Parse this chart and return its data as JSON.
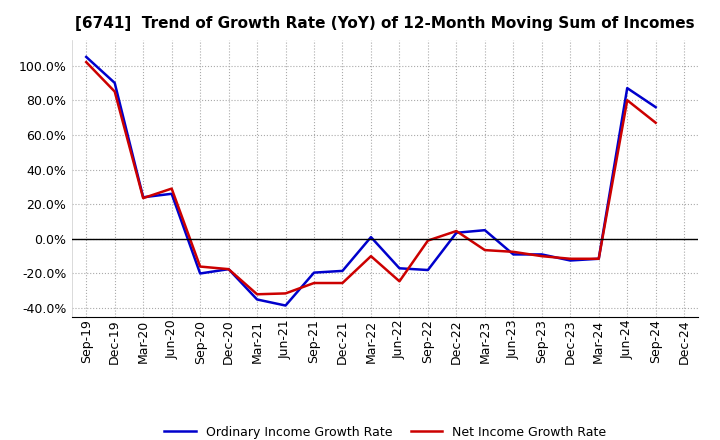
{
  "title": "[6741]  Trend of Growth Rate (YoY) of 12-Month Moving Sum of Incomes",
  "x_labels": [
    "Sep-19",
    "Dec-19",
    "Mar-20",
    "Jun-20",
    "Sep-20",
    "Dec-20",
    "Mar-21",
    "Jun-21",
    "Sep-21",
    "Dec-21",
    "Mar-22",
    "Jun-22",
    "Sep-22",
    "Dec-22",
    "Mar-23",
    "Jun-23",
    "Sep-23",
    "Dec-23",
    "Mar-24",
    "Jun-24",
    "Sep-24",
    "Dec-24"
  ],
  "ordinary_income": [
    1.05,
    0.9,
    0.24,
    0.26,
    -0.2,
    -0.175,
    -0.35,
    -0.385,
    -0.195,
    -0.185,
    0.01,
    -0.17,
    -0.18,
    0.035,
    0.05,
    -0.09,
    -0.09,
    -0.125,
    -0.115,
    0.87,
    0.76,
    null
  ],
  "net_income": [
    1.02,
    0.85,
    0.235,
    0.29,
    -0.16,
    -0.175,
    -0.32,
    -0.315,
    -0.255,
    -0.255,
    -0.1,
    -0.245,
    -0.01,
    0.045,
    -0.065,
    -0.075,
    -0.1,
    -0.115,
    -0.115,
    0.8,
    0.67,
    null
  ],
  "ordinary_color": "#0000cc",
  "net_color": "#cc0000",
  "ylim": [
    -0.45,
    1.15
  ],
  "yticks": [
    -0.4,
    -0.2,
    0.0,
    0.2,
    0.4,
    0.6,
    0.8,
    1.0
  ],
  "background_color": "#ffffff",
  "grid_color": "#aaaaaa",
  "legend_ordinary": "Ordinary Income Growth Rate",
  "legend_net": "Net Income Growth Rate",
  "title_fontsize": 11,
  "tick_fontsize": 9,
  "legend_fontsize": 9
}
